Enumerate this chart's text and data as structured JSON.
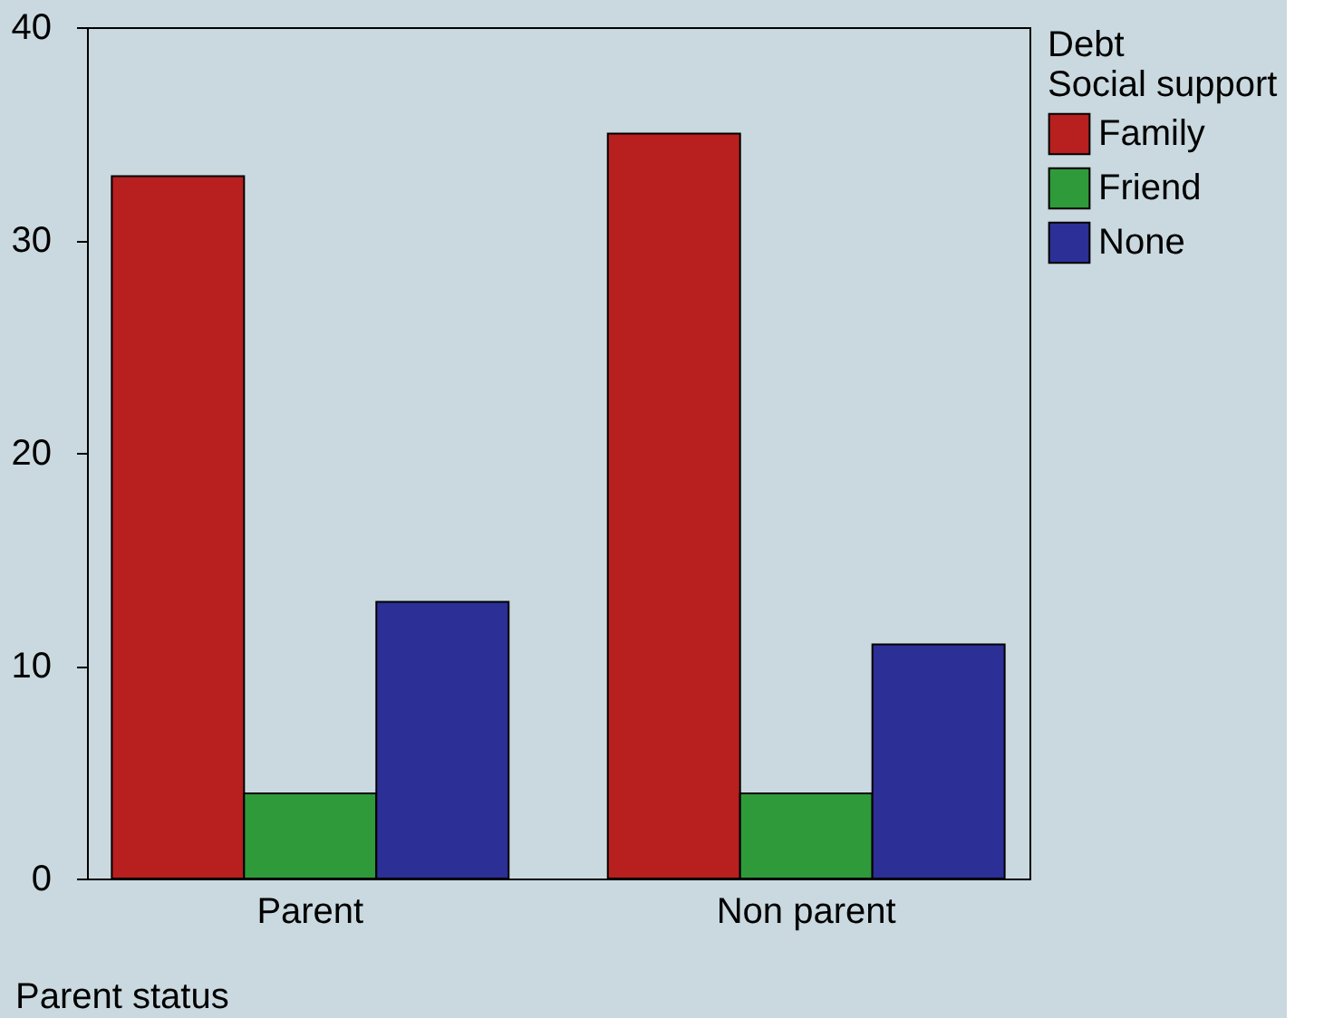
{
  "chart_data": {
    "type": "bar",
    "xlabel": "Parent status",
    "legend_title": "Debt\nSocial support",
    "categories": [
      "Parent",
      "Non parent"
    ],
    "series": [
      {
        "name": "Family",
        "color": "#b81f1f",
        "values": [
          33,
          35
        ]
      },
      {
        "name": "Friend",
        "color": "#2f9a3a",
        "values": [
          4,
          4
        ]
      },
      {
        "name": "None",
        "color": "#2b2f96",
        "values": [
          13,
          11
        ]
      }
    ],
    "ylim": [
      0,
      40
    ],
    "yticks": [
      0,
      10,
      20,
      30,
      40
    ],
    "grid": false,
    "legend": "right"
  }
}
